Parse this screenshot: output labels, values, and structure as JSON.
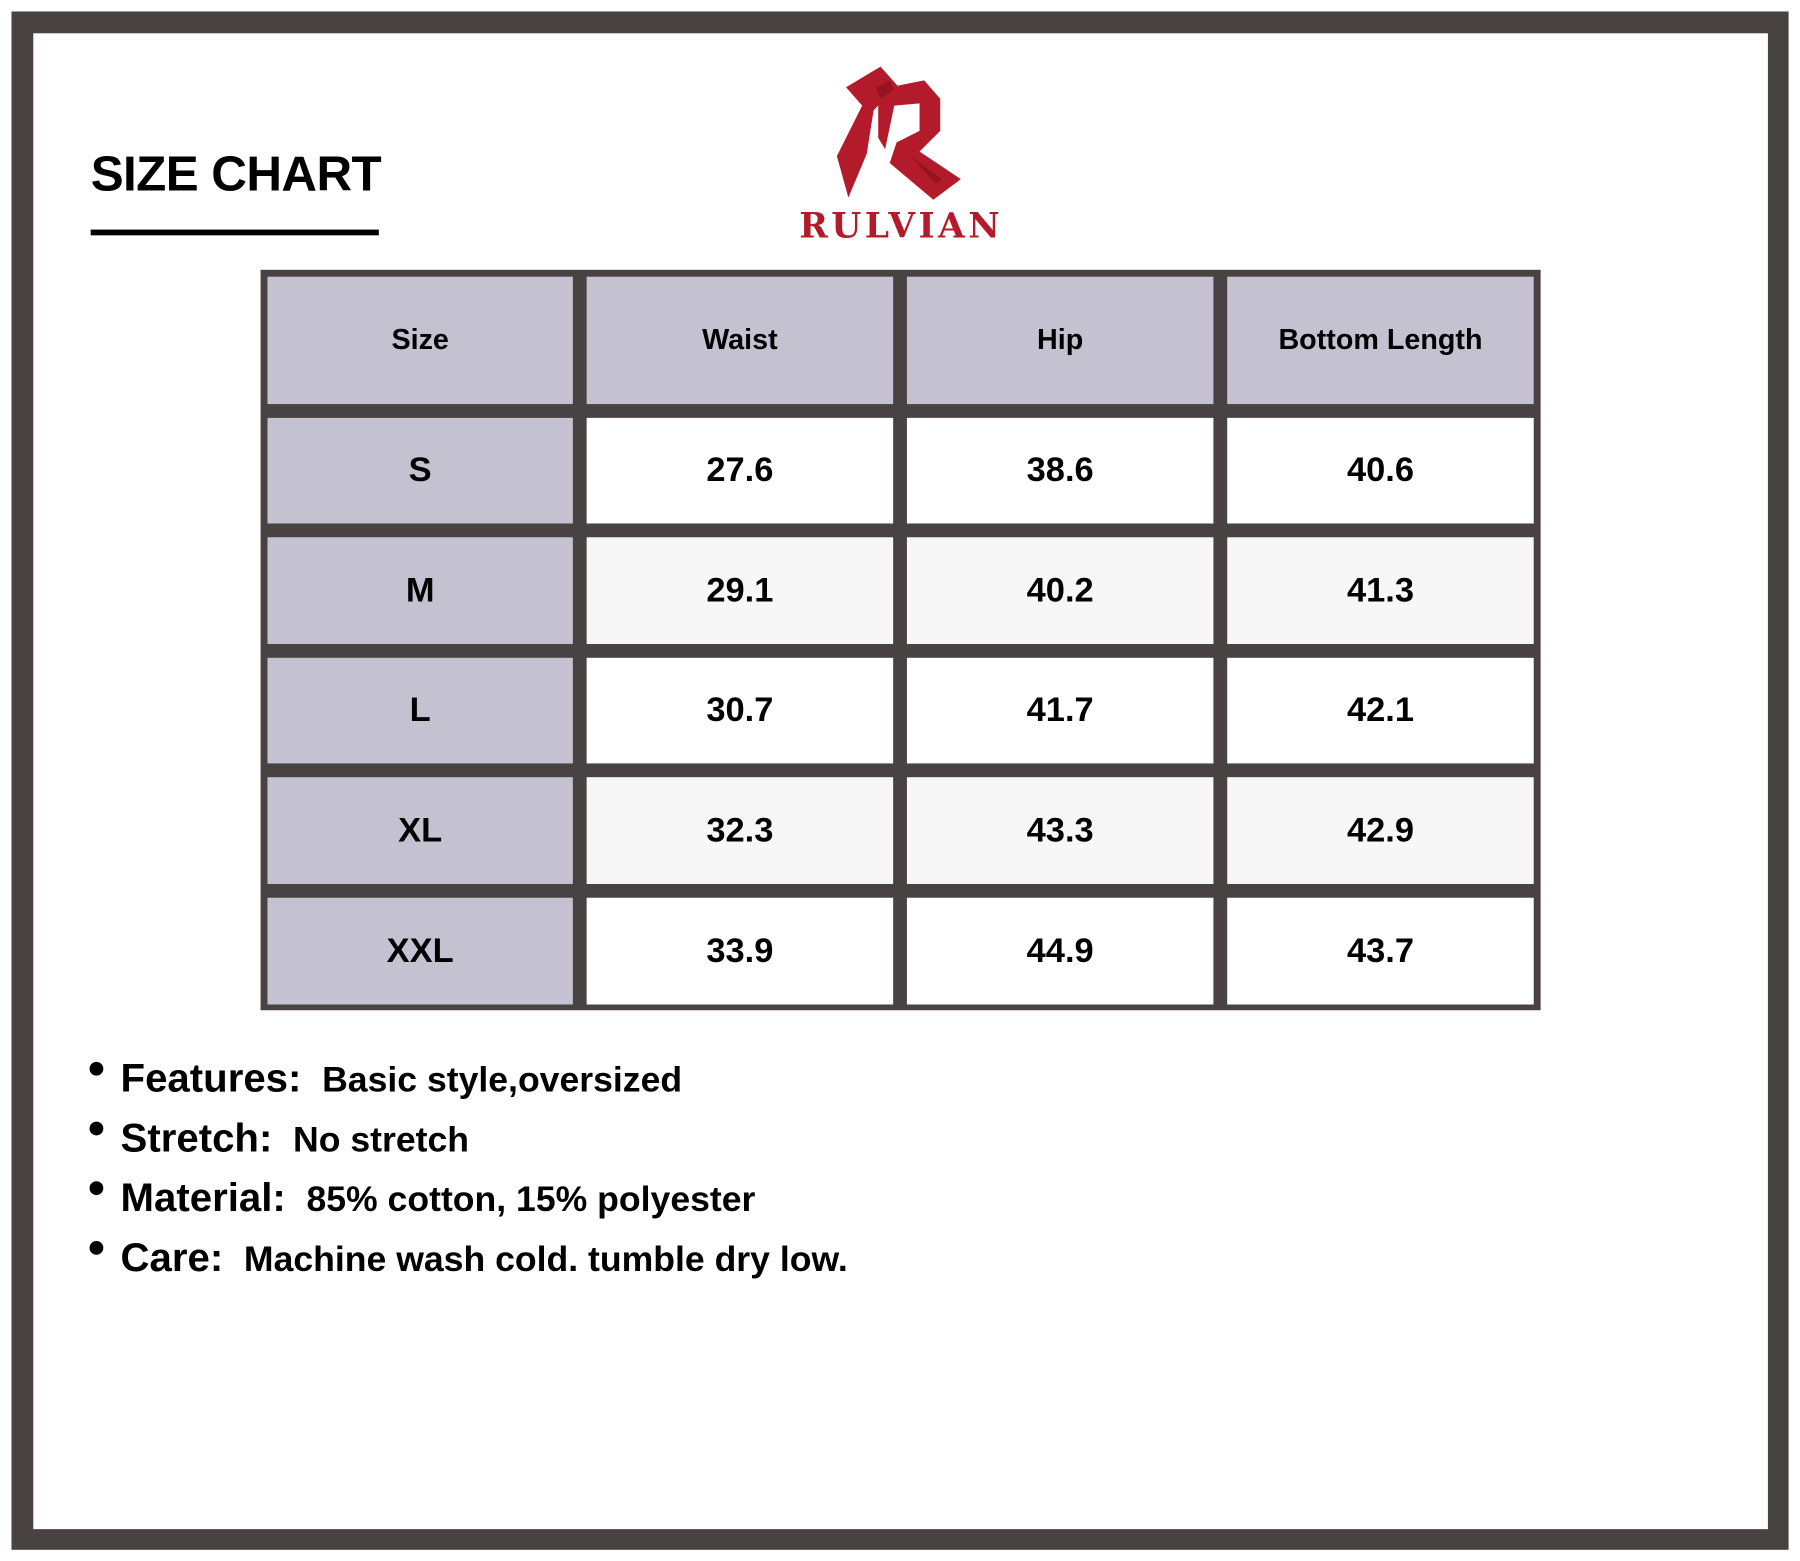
{
  "title": "SIZE CHART",
  "brand": {
    "name": "RULVIAN",
    "color": "#b31b2b"
  },
  "colors": {
    "frame": "#484243",
    "header_bg": "#c4c2d0"
  },
  "table": {
    "headers": [
      "Size",
      "Waist",
      "Hip",
      "Bottom Length"
    ],
    "rows": [
      [
        "S",
        "27.6",
        "38.6",
        "40.6"
      ],
      [
        "M",
        "29.1",
        "40.2",
        "41.3"
      ],
      [
        "L",
        "30.7",
        "41.7",
        "42.1"
      ],
      [
        "XL",
        "32.3",
        "43.3",
        "42.9"
      ],
      [
        "XXL",
        "33.9",
        "44.9",
        "43.7"
      ]
    ]
  },
  "notes": [
    {
      "label": "Features:",
      "value": "Basic style,oversized"
    },
    {
      "label": "Stretch:",
      "value": "No stretch"
    },
    {
      "label": "Material:",
      "value": "85% cotton, 15% polyester"
    },
    {
      "label": "Care:",
      "value": "Machine wash cold. tumble dry low."
    }
  ]
}
